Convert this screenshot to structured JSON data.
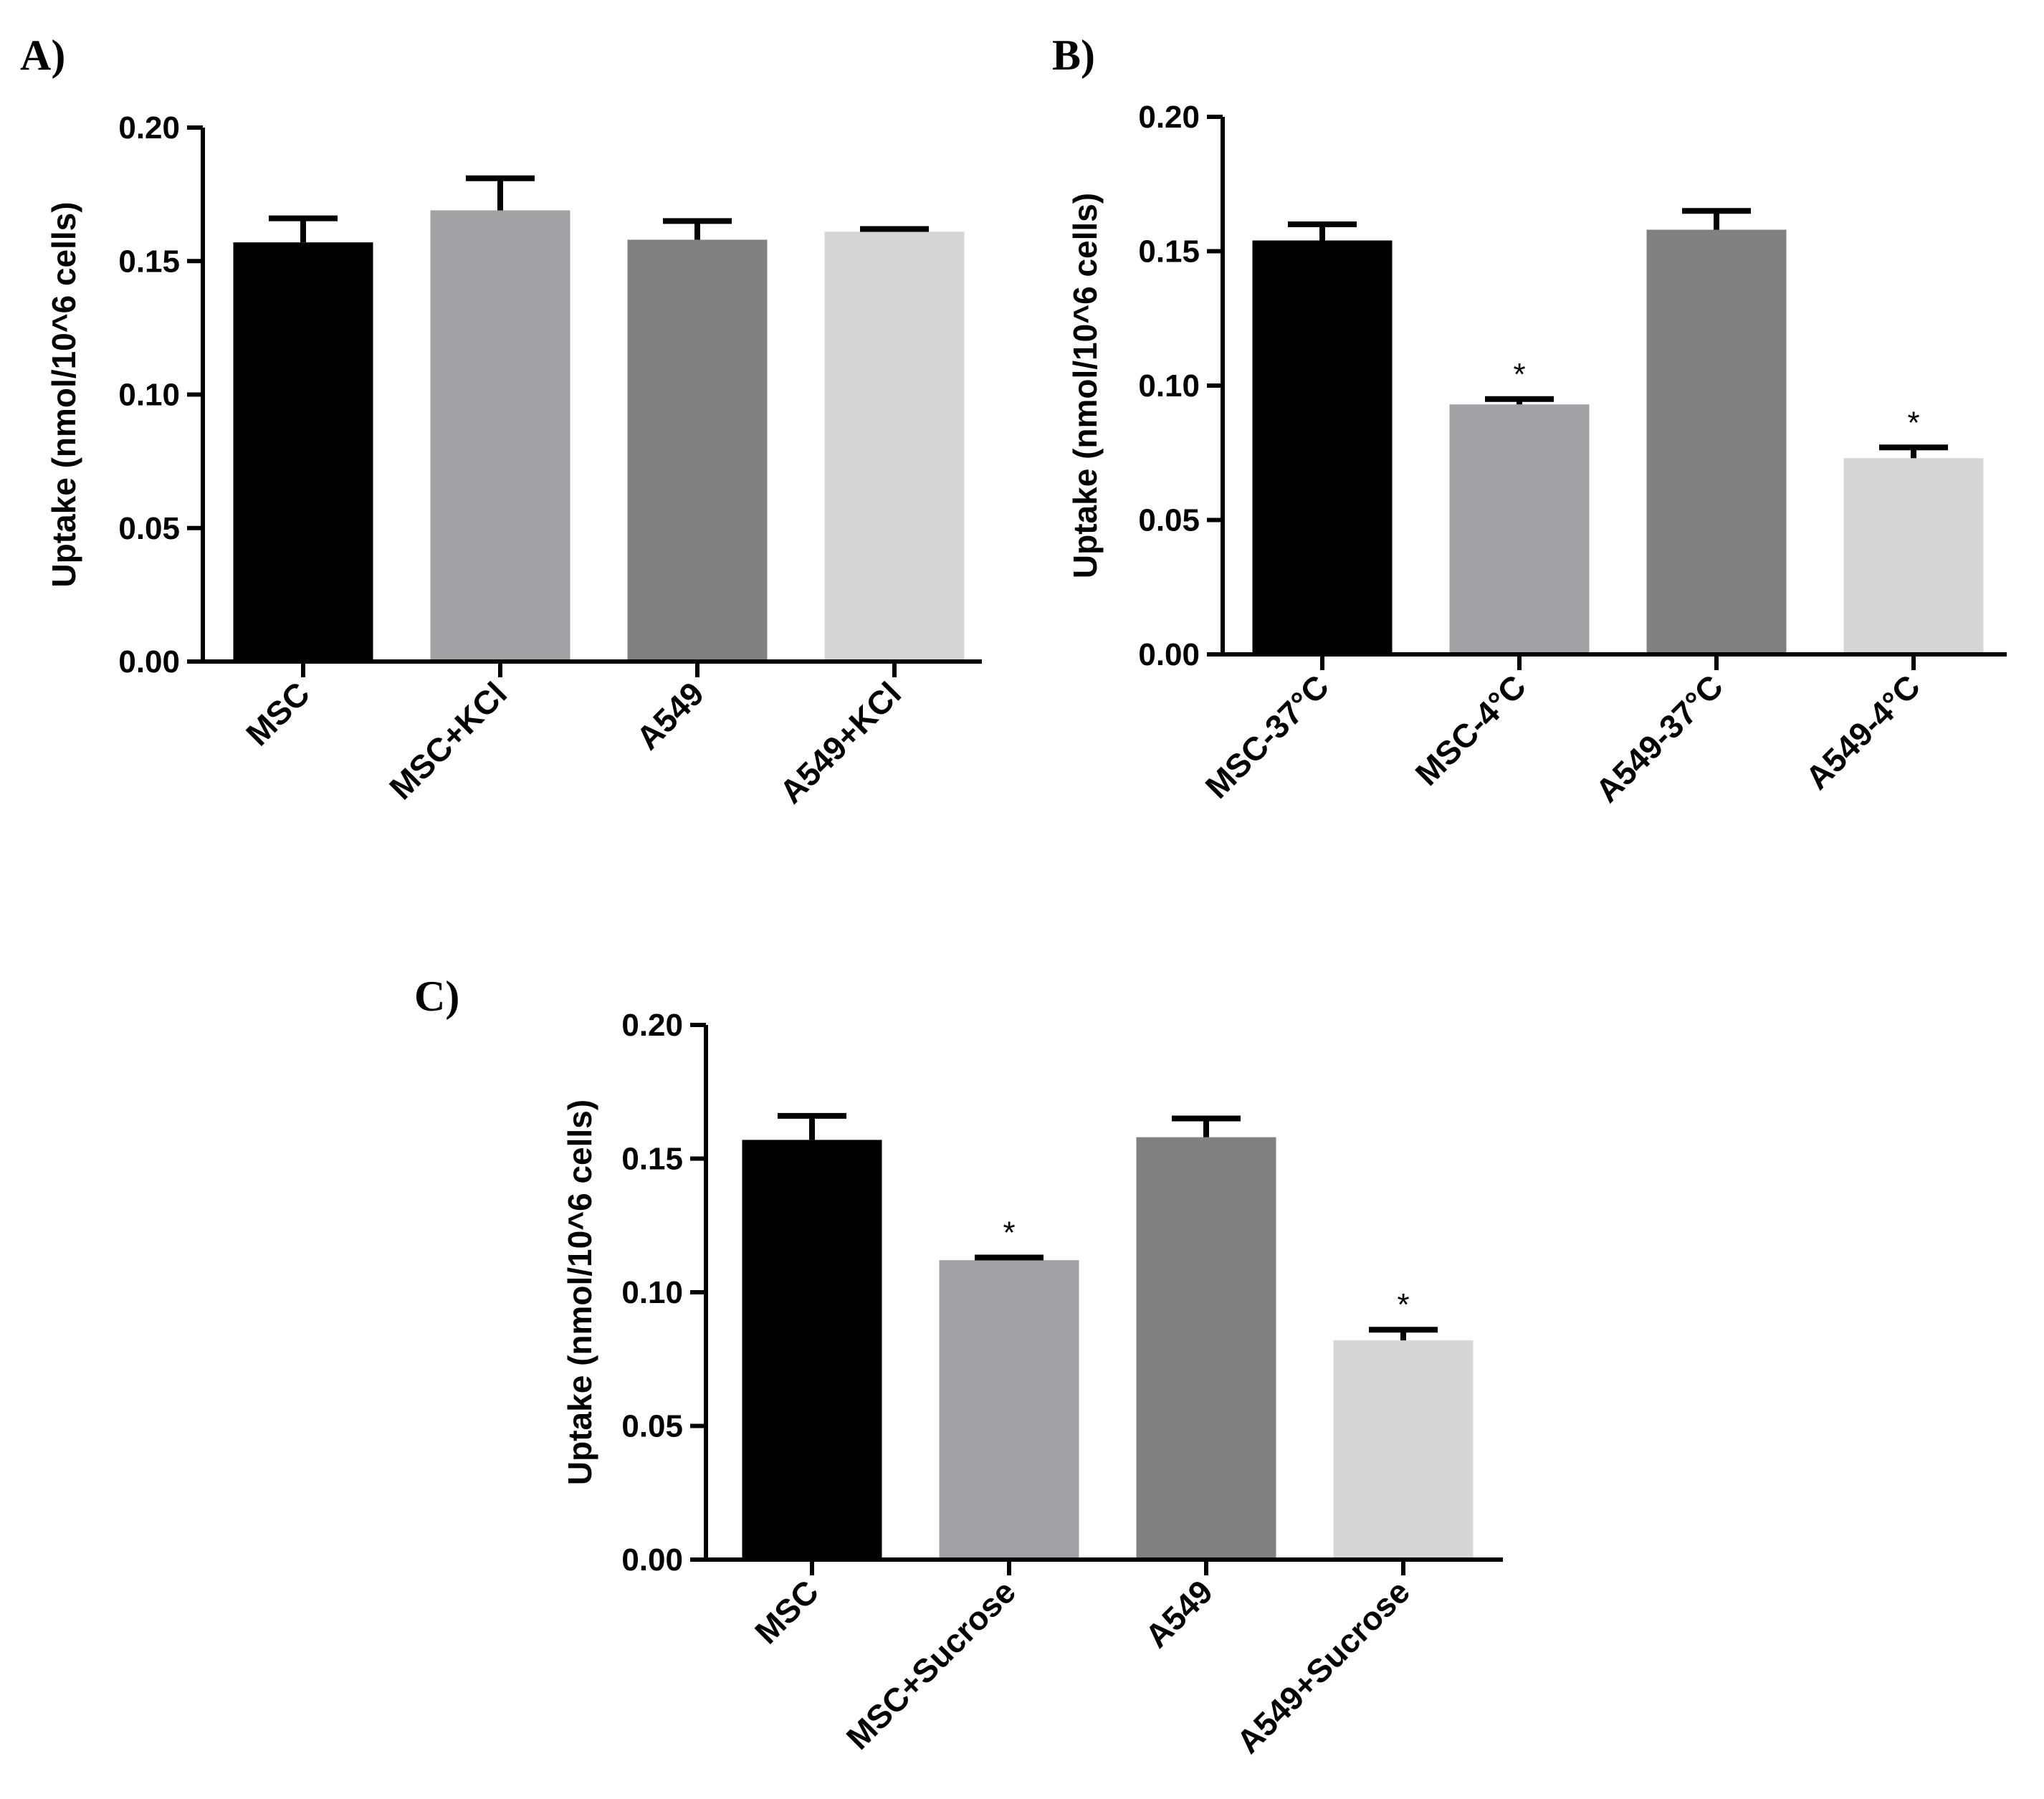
{
  "chart_data": [
    {
      "type": "bar",
      "panel_label": "A)",
      "ylabel": "Uptake (nmol/10^6 cells)",
      "xlabel": "",
      "ylim": [
        0,
        0.2
      ],
      "yticks": [
        "0.00",
        "0.05",
        "0.10",
        "0.15",
        "0.20"
      ],
      "categories": [
        "MSC",
        "MSC+KCl",
        "A549",
        "A549+KCl"
      ],
      "values": [
        0.157,
        0.169,
        0.158,
        0.161
      ],
      "errors": [
        0.009,
        0.012,
        0.007,
        0.001
      ],
      "annotations": [
        "",
        "",
        "",
        ""
      ],
      "colors": [
        "#000000",
        "#a1a2a6",
        "#818181",
        "#d6d6d6"
      ]
    },
    {
      "type": "bar",
      "panel_label": "B)",
      "ylabel": "Uptake (nmol/10^6 cells)",
      "xlabel": "",
      "ylim": [
        0,
        0.2
      ],
      "yticks": [
        "0.00",
        "0.05",
        "0.10",
        "0.15",
        "0.20"
      ],
      "categories": [
        "MSC-37°C",
        "MSC-4°C",
        "A549-37°C",
        "A549-4°C"
      ],
      "values": [
        0.154,
        0.093,
        0.158,
        0.073
      ],
      "errors": [
        0.006,
        0.002,
        0.007,
        0.004
      ],
      "annotations": [
        "",
        "*",
        "",
        "*"
      ],
      "colors": [
        "#000000",
        "#a1a2a6",
        "#818181",
        "#d6d6d6"
      ]
    },
    {
      "type": "bar",
      "panel_label": "C)",
      "ylabel": "Uptake (nmol/10^6 cells)",
      "xlabel": "",
      "ylim": [
        0,
        0.2
      ],
      "yticks": [
        "0.00",
        "0.05",
        "0.10",
        "0.15",
        "0.20"
      ],
      "categories": [
        "MSC",
        "MSC+Sucrose",
        "A549",
        "A549+Sucrose"
      ],
      "values": [
        0.157,
        0.112,
        0.158,
        0.082
      ],
      "errors": [
        0.009,
        0.001,
        0.007,
        0.004
      ],
      "annotations": [
        "",
        "*",
        "",
        "*"
      ],
      "colors": [
        "#000000",
        "#a1a2a6",
        "#818181",
        "#d6d6d6"
      ]
    }
  ]
}
